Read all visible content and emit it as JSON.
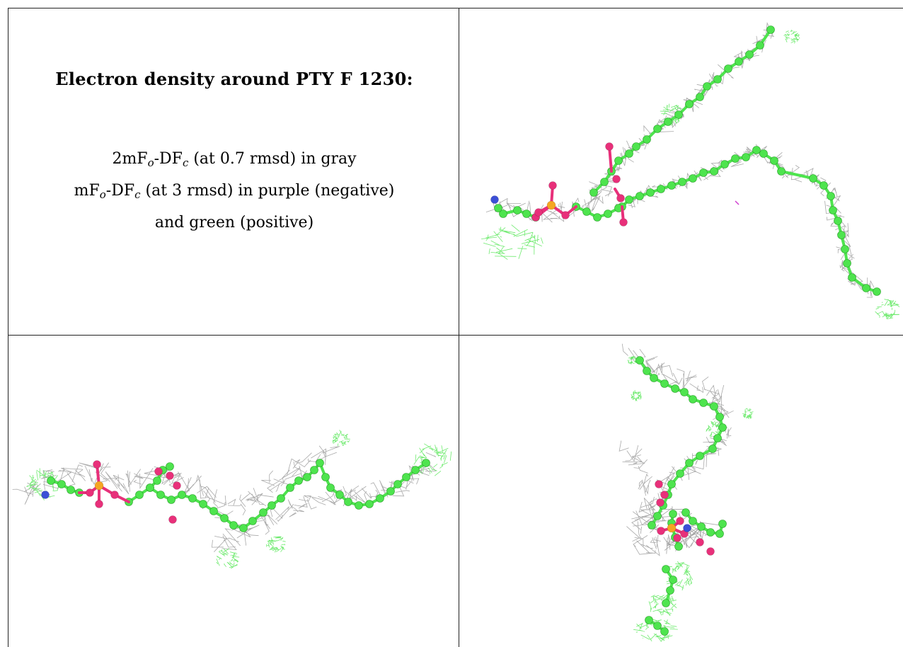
{
  "caption": {
    "title": "Electron density around PTY F 1230:",
    "line1": {
      "prefix": "2mF",
      "sub_o": "o",
      "mid": "-DF",
      "sub_c": "c",
      "suffix": " (at 0.7 rmsd) in gray"
    },
    "line2": {
      "prefix": "mF",
      "sub_o": "o",
      "mid": "-DF",
      "sub_c": "c",
      "suffix": " (at 3 rmsd) in purple (negative)"
    },
    "line3": "and green (positive)"
  },
  "colors": {
    "carbon": "#4ee44e",
    "oxygen": "#e8307a",
    "phosphorus": "#f5a623",
    "nitrogen": "#3c4fd6",
    "mesh_2fofc": "#9a9a9a",
    "mesh_positive": "#5ee85e",
    "mesh_negative": "#d040d0",
    "grid_lines": "#222222"
  }
}
